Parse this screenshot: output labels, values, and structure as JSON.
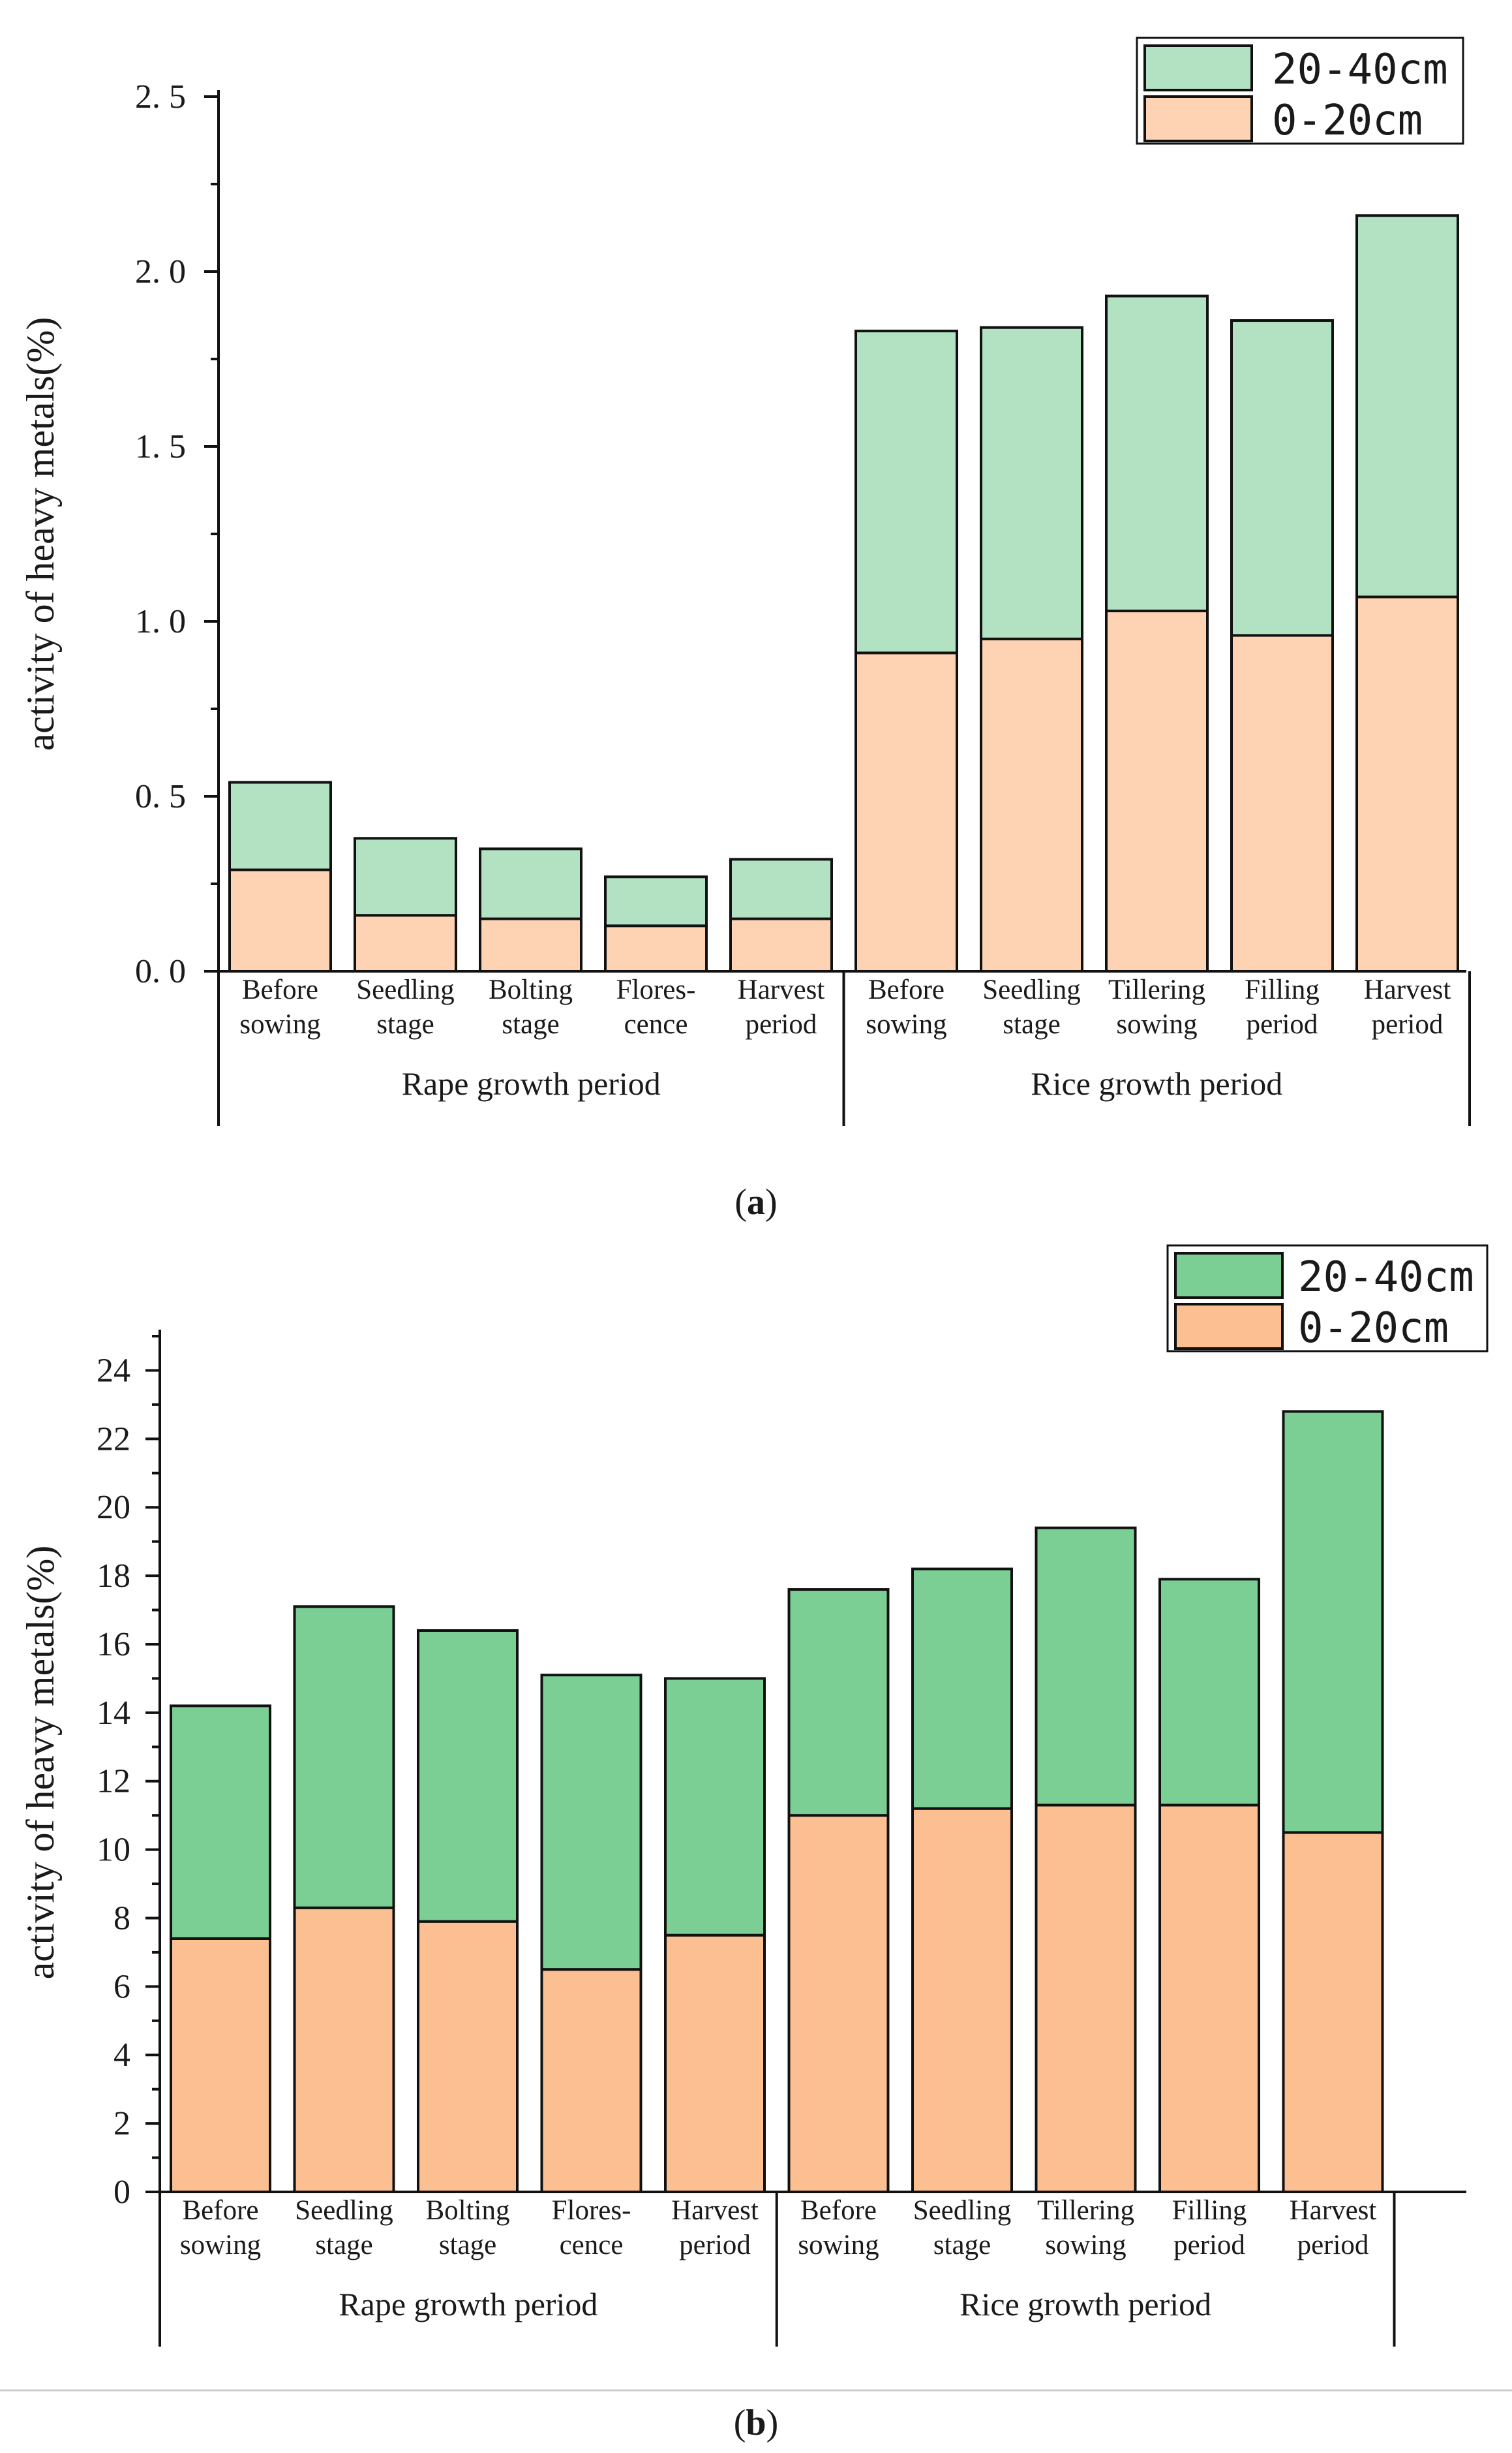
{
  "chart_data": [
    {
      "type": "stacked-bar",
      "panel": "a",
      "caption": "(a)",
      "ylabel": "activity of heavy metals(%)",
      "ylim": [
        0,
        2.5
      ],
      "yticks": [
        "0. 0",
        "0. 5",
        "1. 0",
        "1. 5",
        "2. 0",
        "2. 5"
      ],
      "ytick_values": [
        0,
        0.5,
        1.0,
        1.5,
        2.0,
        2.5
      ],
      "minor_ticks_per_major": 1,
      "categories": [
        [
          "Before",
          "sowing"
        ],
        [
          "Seedling",
          "stage"
        ],
        [
          "Bolting",
          "stage"
        ],
        [
          "Flores-",
          "cence"
        ],
        [
          "Harvest",
          "period"
        ],
        [
          "Before",
          "sowing"
        ],
        [
          "Seedling",
          "stage"
        ],
        [
          "Tillering",
          "sowing"
        ],
        [
          "Filling",
          "period"
        ],
        [
          "Harvest",
          "period"
        ]
      ],
      "groups": [
        {
          "label": "Rape growth period",
          "count": 5
        },
        {
          "label": "Rice growth period",
          "count": 5
        }
      ],
      "series": [
        {
          "name": "0-20cm",
          "color": "#fdd3b4",
          "values": [
            0.29,
            0.16,
            0.15,
            0.13,
            0.15,
            0.91,
            0.95,
            1.03,
            0.96,
            1.07
          ]
        },
        {
          "name": "20-40cm",
          "color": "#b3e2c3",
          "values": [
            0.25,
            0.22,
            0.2,
            0.14,
            0.17,
            0.92,
            0.89,
            0.9,
            0.9,
            1.09
          ]
        }
      ],
      "legend_order": [
        "20-40cm",
        "0-20cm"
      ],
      "legend_position": "top-right"
    },
    {
      "type": "stacked-bar",
      "panel": "b",
      "caption": "(b)",
      "ylabel": "activity of heavy metals(%)",
      "ylim": [
        0,
        25
      ],
      "yticks": [
        "0",
        "2",
        "4",
        "6",
        "8",
        "10",
        "12",
        "14",
        "16",
        "18",
        "20",
        "22",
        "24"
      ],
      "ytick_values": [
        0,
        2,
        4,
        6,
        8,
        10,
        12,
        14,
        16,
        18,
        20,
        22,
        24
      ],
      "minor_ticks_per_major": 1,
      "categories": [
        [
          "Before",
          "sowing"
        ],
        [
          "Seedling",
          "stage"
        ],
        [
          "Bolting",
          "stage"
        ],
        [
          "Flores-",
          "cence"
        ],
        [
          "Harvest",
          "period"
        ],
        [
          "Before",
          "sowing"
        ],
        [
          "Seedling",
          "stage"
        ],
        [
          "Tillering",
          "sowing"
        ],
        [
          "Filling",
          "period"
        ],
        [
          "Harvest",
          "period"
        ]
      ],
      "groups": [
        {
          "label": "Rape growth period",
          "count": 5
        },
        {
          "label": "Rice growth period",
          "count": 5
        }
      ],
      "series": [
        {
          "name": "0-20cm",
          "color": "#fbbf92",
          "values": [
            7.4,
            8.3,
            7.9,
            6.5,
            7.5,
            11.0,
            11.2,
            11.3,
            11.3,
            10.5
          ]
        },
        {
          "name": "20-40cm",
          "color": "#7bcf95",
          "values": [
            6.8,
            8.8,
            8.5,
            8.6,
            7.5,
            6.6,
            7.0,
            8.1,
            6.6,
            12.3
          ]
        }
      ],
      "legend_order": [
        "20-40cm",
        "0-20cm"
      ],
      "legend_position": "top-right"
    }
  ]
}
